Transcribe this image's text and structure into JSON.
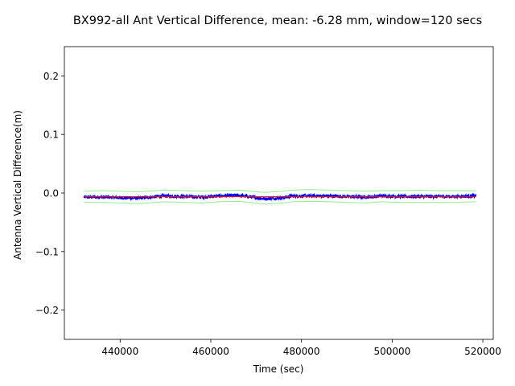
{
  "chart_data": {
    "type": "line",
    "title": "BX992-all Ant Vertical Difference, mean: -6.28 mm, window=120 secs",
    "xlabel": "Time (sec)",
    "ylabel": "Antenna Vertical Difference(m)",
    "xlim": [
      427700,
      522300
    ],
    "ylim": [
      -0.25,
      0.25
    ],
    "x_ticks": [
      440000,
      460000,
      480000,
      500000,
      520000
    ],
    "x_tick_labels": [
      "440000",
      "460000",
      "480000",
      "500000",
      "520000"
    ],
    "y_ticks": [
      -0.2,
      -0.1,
      0.0,
      0.1,
      0.2
    ],
    "y_tick_labels": [
      "−0.2",
      "−0.1",
      "0.0",
      "0.1",
      "0.2"
    ],
    "grid": false,
    "x_range": [
      432000,
      518500
    ],
    "series": [
      {
        "role": "measurement",
        "color": "#0000ff",
        "x": [
          432000,
          436000,
          440000,
          444000,
          448000,
          450000,
          454000,
          458000,
          462000,
          466000,
          470000,
          472000,
          474000,
          476000,
          478000,
          482000,
          486000,
          490000,
          494000,
          498000,
          502000,
          506000,
          510000,
          514000,
          518500
        ],
        "y": [
          -0.007,
          -0.007,
          -0.008,
          -0.009,
          -0.006,
          -0.005,
          -0.006,
          -0.007,
          -0.005,
          -0.004,
          -0.008,
          -0.01,
          -0.009,
          -0.008,
          -0.005,
          -0.005,
          -0.005,
          -0.006,
          -0.007,
          -0.005,
          -0.006,
          -0.006,
          -0.006,
          -0.006,
          -0.005
        ],
        "noise": 0.003
      },
      {
        "role": "mean",
        "color": "#ff0000",
        "x": [
          432000,
          518500
        ],
        "y": [
          -0.00628,
          -0.00628
        ]
      },
      {
        "role": "upper-band",
        "color": "#90ee90",
        "x": [
          432000,
          436000,
          440000,
          444000,
          448000,
          450000,
          454000,
          458000,
          462000,
          466000,
          470000,
          472000,
          474000,
          476000,
          478000,
          482000,
          486000,
          490000,
          494000,
          498000,
          502000,
          506000,
          510000,
          514000,
          518500
        ],
        "y": [
          0.003,
          0.004,
          0.003,
          0.002,
          0.004,
          0.005,
          0.004,
          0.003,
          0.004,
          0.005,
          0.002,
          0.001,
          0.002,
          0.003,
          0.005,
          0.006,
          0.005,
          0.004,
          0.003,
          0.004,
          0.004,
          0.005,
          0.004,
          0.004,
          0.004
        ]
      },
      {
        "role": "lower-band",
        "color": "#90ee90",
        "x": [
          432000,
          436000,
          440000,
          444000,
          448000,
          450000,
          454000,
          458000,
          462000,
          466000,
          470000,
          472000,
          474000,
          476000,
          478000,
          482000,
          486000,
          490000,
          494000,
          498000,
          502000,
          506000,
          510000,
          514000,
          518500
        ],
        "y": [
          -0.016,
          -0.016,
          -0.017,
          -0.018,
          -0.016,
          -0.015,
          -0.016,
          -0.017,
          -0.015,
          -0.014,
          -0.017,
          -0.019,
          -0.018,
          -0.017,
          -0.015,
          -0.014,
          -0.015,
          -0.016,
          -0.017,
          -0.015,
          -0.016,
          -0.016,
          -0.016,
          -0.016,
          -0.015
        ]
      }
    ]
  }
}
